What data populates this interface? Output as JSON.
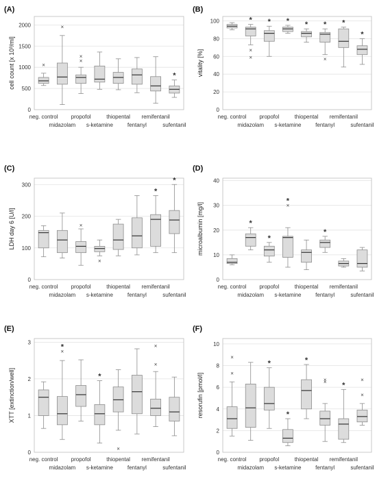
{
  "chart_data": [
    {
      "type": "box",
      "panel_label": "(A)",
      "ylabel": "cell count [x 10³/ml]",
      "ylim": [
        0,
        2200
      ],
      "yticks": [
        0,
        500,
        1000,
        1500,
        2000
      ],
      "categories": [
        "neg. control",
        "midazolam",
        "propofol",
        "s-ketamine",
        "thiopental",
        "fentanyl",
        "remifentanil",
        "sufentanil"
      ],
      "boxes": [
        {
          "min": 570,
          "q1": 620,
          "median": 680,
          "q3": 760,
          "max": 860,
          "outliers": [
            1060
          ],
          "significant": false
        },
        {
          "min": 120,
          "q1": 600,
          "median": 770,
          "q3": 1100,
          "max": 1750,
          "outliers": [
            1960
          ],
          "significant": false
        },
        {
          "min": 380,
          "q1": 620,
          "median": 760,
          "q3": 820,
          "max": 1000,
          "outliers": [
            1160,
            1260
          ],
          "significant": false
        },
        {
          "min": 480,
          "q1": 650,
          "median": 720,
          "q3": 1030,
          "max": 1360,
          "outliers": [],
          "significant": false
        },
        {
          "min": 470,
          "q1": 620,
          "median": 760,
          "q3": 880,
          "max": 1200,
          "outliers": [],
          "significant": false
        },
        {
          "min": 400,
          "q1": 600,
          "median": 820,
          "q3": 960,
          "max": 1230,
          "outliers": [],
          "significant": false
        },
        {
          "min": 150,
          "q1": 440,
          "median": 560,
          "q3": 780,
          "max": 1250,
          "outliers": [],
          "significant": false
        },
        {
          "min": 290,
          "q1": 390,
          "median": 480,
          "q3": 560,
          "max": 700,
          "outliers": [],
          "significant": true
        }
      ]
    },
    {
      "type": "box",
      "panel_label": "(B)",
      "ylabel": "vitality [%]",
      "ylim": [
        0,
        105
      ],
      "yticks": [
        0,
        20,
        40,
        60,
        80,
        100
      ],
      "categories": [
        "neg. control",
        "midazolam",
        "propofol",
        "s-ketamine",
        "thiopental",
        "fentanyl",
        "remifentanil",
        "sufentanil"
      ],
      "boxes": [
        {
          "min": 90,
          "q1": 92,
          "median": 94,
          "q3": 96,
          "max": 98,
          "outliers": [],
          "significant": false
        },
        {
          "min": 73,
          "q1": 83,
          "median": 91,
          "q3": 93,
          "max": 96,
          "outliers": [
            67,
            59
          ],
          "significant": true
        },
        {
          "min": 60,
          "q1": 77,
          "median": 86,
          "q3": 89,
          "max": 94,
          "outliers": [],
          "significant": true
        },
        {
          "min": 86,
          "q1": 88,
          "median": 91,
          "q3": 93,
          "max": 95,
          "outliers": [],
          "significant": true
        },
        {
          "min": 76,
          "q1": 82,
          "median": 86,
          "q3": 88,
          "max": 91,
          "outliers": [],
          "significant": true
        },
        {
          "min": 62,
          "q1": 76,
          "median": 85,
          "q3": 87,
          "max": 91,
          "outliers": [
            57
          ],
          "significant": true
        },
        {
          "min": 48,
          "q1": 70,
          "median": 77,
          "q3": 91,
          "max": 93,
          "outliers": [],
          "significant": true
        },
        {
          "min": 51,
          "q1": 62,
          "median": 68,
          "q3": 72,
          "max": 80,
          "outliers": [],
          "significant": true
        }
      ]
    },
    {
      "type": "box",
      "panel_label": "(C)",
      "ylabel": "LDH day 6 [U/l]",
      "ylim": [
        0,
        320
      ],
      "yticks": [
        0,
        100,
        200,
        300
      ],
      "categories": [
        "neg. control",
        "midazolam",
        "propofol",
        "s-ketamine",
        "thiopental",
        "fentanyl",
        "remifentanil",
        "sufentanil"
      ],
      "boxes": [
        {
          "min": 72,
          "q1": 100,
          "median": 148,
          "q3": 155,
          "max": 170,
          "outliers": [],
          "significant": false
        },
        {
          "min": 68,
          "q1": 85,
          "median": 125,
          "q3": 155,
          "max": 210,
          "outliers": [],
          "significant": false
        },
        {
          "min": 45,
          "q1": 85,
          "median": 105,
          "q3": 120,
          "max": 160,
          "outliers": [
            172
          ],
          "significant": false
        },
        {
          "min": 75,
          "q1": 88,
          "median": 98,
          "q3": 105,
          "max": 125,
          "outliers": [
            60
          ],
          "significant": false
        },
        {
          "min": 75,
          "q1": 95,
          "median": 125,
          "q3": 175,
          "max": 190,
          "outliers": [],
          "significant": false
        },
        {
          "min": 78,
          "q1": 100,
          "median": 138,
          "q3": 195,
          "max": 265,
          "outliers": [],
          "significant": false
        },
        {
          "min": 85,
          "q1": 105,
          "median": 190,
          "q3": 205,
          "max": 265,
          "outliers": [],
          "significant": true
        },
        {
          "min": 85,
          "q1": 145,
          "median": 188,
          "q3": 218,
          "max": 300,
          "outliers": [],
          "significant": true
        }
      ]
    },
    {
      "type": "box",
      "panel_label": "(D)",
      "ylabel": "microalbumin [mg/l]",
      "ylim": [
        0,
        41
      ],
      "yticks": [
        0,
        10,
        20,
        30,
        40
      ],
      "categories": [
        "neg. control",
        "midazolam",
        "propofol",
        "s-ketamine",
        "thiopental",
        "fentanyl",
        "remifentanil",
        "sufentanil"
      ],
      "boxes": [
        {
          "min": 6,
          "q1": 6.5,
          "median": 7,
          "q3": 8.5,
          "max": 10,
          "outliers": [],
          "significant": false
        },
        {
          "min": 12,
          "q1": 13.5,
          "median": 17,
          "q3": 18.5,
          "max": 21,
          "outliers": [],
          "significant": true
        },
        {
          "min": 7,
          "q1": 9.5,
          "median": 12,
          "q3": 13.5,
          "max": 15,
          "outliers": [],
          "significant": true
        },
        {
          "min": 5,
          "q1": 9,
          "median": 17,
          "q3": 17.5,
          "max": 21,
          "outliers": [
            30
          ],
          "significant": true
        },
        {
          "min": 4,
          "q1": 7,
          "median": 11,
          "q3": 12,
          "max": 16,
          "outliers": [],
          "significant": false
        },
        {
          "min": 11,
          "q1": 13,
          "median": 15,
          "q3": 16,
          "max": 17.5,
          "outliers": [],
          "significant": true
        },
        {
          "min": 5,
          "q1": 5.5,
          "median": 6.5,
          "q3": 7.5,
          "max": 8.5,
          "outliers": [],
          "significant": false
        },
        {
          "min": 3.5,
          "q1": 5,
          "median": 6.5,
          "q3": 12,
          "max": 13,
          "outliers": [],
          "significant": false
        }
      ]
    },
    {
      "type": "box",
      "panel_label": "(E)",
      "ylabel": "XTT [extinction/well]",
      "ylim": [
        0,
        3.1
      ],
      "yticks": [
        0,
        1,
        2,
        3
      ],
      "categories": [
        "neg. control",
        "midazolam",
        "propofol",
        "s-ketamine",
        "thiopental",
        "fentanyl",
        "remifentanil",
        "sufentanil"
      ],
      "boxes": [
        {
          "min": 0.65,
          "q1": 1.0,
          "median": 1.5,
          "q3": 1.7,
          "max": 1.92,
          "outliers": [],
          "significant": false
        },
        {
          "min": 0.35,
          "q1": 0.75,
          "median": 1.05,
          "q3": 1.52,
          "max": 2.5,
          "outliers": [
            2.75
          ],
          "significant": true
        },
        {
          "min": 0.85,
          "q1": 1.25,
          "median": 1.57,
          "q3": 1.82,
          "max": 2.52,
          "outliers": [],
          "significant": false
        },
        {
          "min": 0.25,
          "q1": 0.75,
          "median": 1.05,
          "q3": 1.3,
          "max": 1.95,
          "outliers": [],
          "significant": true
        },
        {
          "min": 0.6,
          "q1": 1.1,
          "median": 1.43,
          "q3": 1.78,
          "max": 2.25,
          "outliers": [
            0.1
          ],
          "significant": false
        },
        {
          "min": 0.5,
          "q1": 1.05,
          "median": 1.65,
          "q3": 2.1,
          "max": 2.82,
          "outliers": [],
          "significant": false
        },
        {
          "min": 0.7,
          "q1": 1.0,
          "median": 1.2,
          "q3": 1.45,
          "max": 2.2,
          "outliers": [
            2.9,
            2.4
          ],
          "significant": false
        },
        {
          "min": 0.45,
          "q1": 0.85,
          "median": 1.1,
          "q3": 1.5,
          "max": 2.05,
          "outliers": [],
          "significant": false
        }
      ]
    },
    {
      "type": "box",
      "panel_label": "(F)",
      "ylabel": "resorufin [pmol/l]",
      "ylim": [
        0,
        10.5
      ],
      "yticks": [
        0,
        2,
        4,
        6,
        8,
        10
      ],
      "categories": [
        "neg. control",
        "midazolam",
        "propofol",
        "s-ketamine",
        "thiopental",
        "fentanyl",
        "remifentanil",
        "sufentanil"
      ],
      "boxes": [
        {
          "min": 1.5,
          "q1": 2.2,
          "median": 3.1,
          "q3": 4.2,
          "max": 6.5,
          "outliers": [
            8.8,
            7.3
          ],
          "significant": false
        },
        {
          "min": 1.1,
          "q1": 2.3,
          "median": 4.1,
          "q3": 6.3,
          "max": 8.3,
          "outliers": [],
          "significant": false
        },
        {
          "min": 2.2,
          "q1": 3.9,
          "median": 4.5,
          "q3": 6.0,
          "max": 7.8,
          "outliers": [],
          "significant": true
        },
        {
          "min": 0.6,
          "q1": 0.9,
          "median": 1.3,
          "q3": 2.1,
          "max": 3.1,
          "outliers": [],
          "significant": true
        },
        {
          "min": 3.1,
          "q1": 4.0,
          "median": 5.7,
          "q3": 6.7,
          "max": 8.1,
          "outliers": [],
          "significant": true
        },
        {
          "min": 1.0,
          "q1": 2.5,
          "median": 3.1,
          "q3": 3.8,
          "max": 4.5,
          "outliers": [
            6.7,
            6.5
          ],
          "significant": false
        },
        {
          "min": 0.9,
          "q1": 1.2,
          "median": 2.6,
          "q3": 3.1,
          "max": 5.8,
          "outliers": [],
          "significant": true
        },
        {
          "min": 2.5,
          "q1": 2.8,
          "median": 3.3,
          "q3": 3.9,
          "max": 4.5,
          "outliers": [
            6.7,
            5.3
          ],
          "significant": false
        }
      ]
    }
  ]
}
